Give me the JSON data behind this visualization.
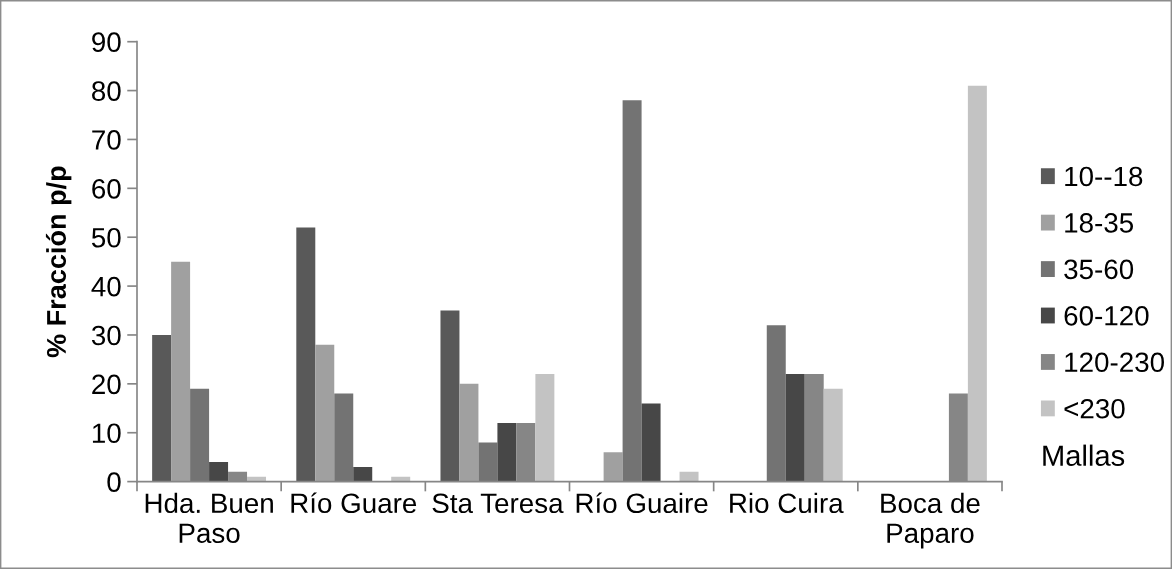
{
  "chart_data": {
    "type": "bar",
    "ylabel": "% Fracción p/p",
    "legend_title": "Mallas",
    "categories": [
      "Hda. Buen\nPaso",
      "Río Guare",
      "Sta Teresa",
      "Río Guaire",
      "Rio Cuira",
      "Boca de\nPaparo"
    ],
    "series": [
      {
        "name": "10--18",
        "color": "#595959",
        "values": [
          30,
          52,
          35,
          0,
          0,
          0
        ]
      },
      {
        "name": "18-35",
        "color": "#a0a0a0",
        "values": [
          45,
          28,
          20,
          6,
          0,
          0
        ]
      },
      {
        "name": "35-60",
        "color": "#737373",
        "values": [
          19,
          18,
          8,
          78,
          32,
          0
        ]
      },
      {
        "name": "60-120",
        "color": "#474747",
        "values": [
          4,
          3,
          12,
          16,
          22,
          0
        ]
      },
      {
        "name": "120-230",
        "color": "#868686",
        "values": [
          2,
          0,
          12,
          0,
          22,
          18
        ]
      },
      {
        "name": "<230",
        "color": "#c3c3c3",
        "values": [
          1,
          1,
          22,
          2,
          19,
          81
        ]
      }
    ],
    "ylim": [
      0,
      90
    ],
    "yticks": [
      0,
      10,
      20,
      30,
      40,
      50,
      60,
      70,
      80,
      90
    ],
    "grid": false,
    "legend": "right"
  }
}
